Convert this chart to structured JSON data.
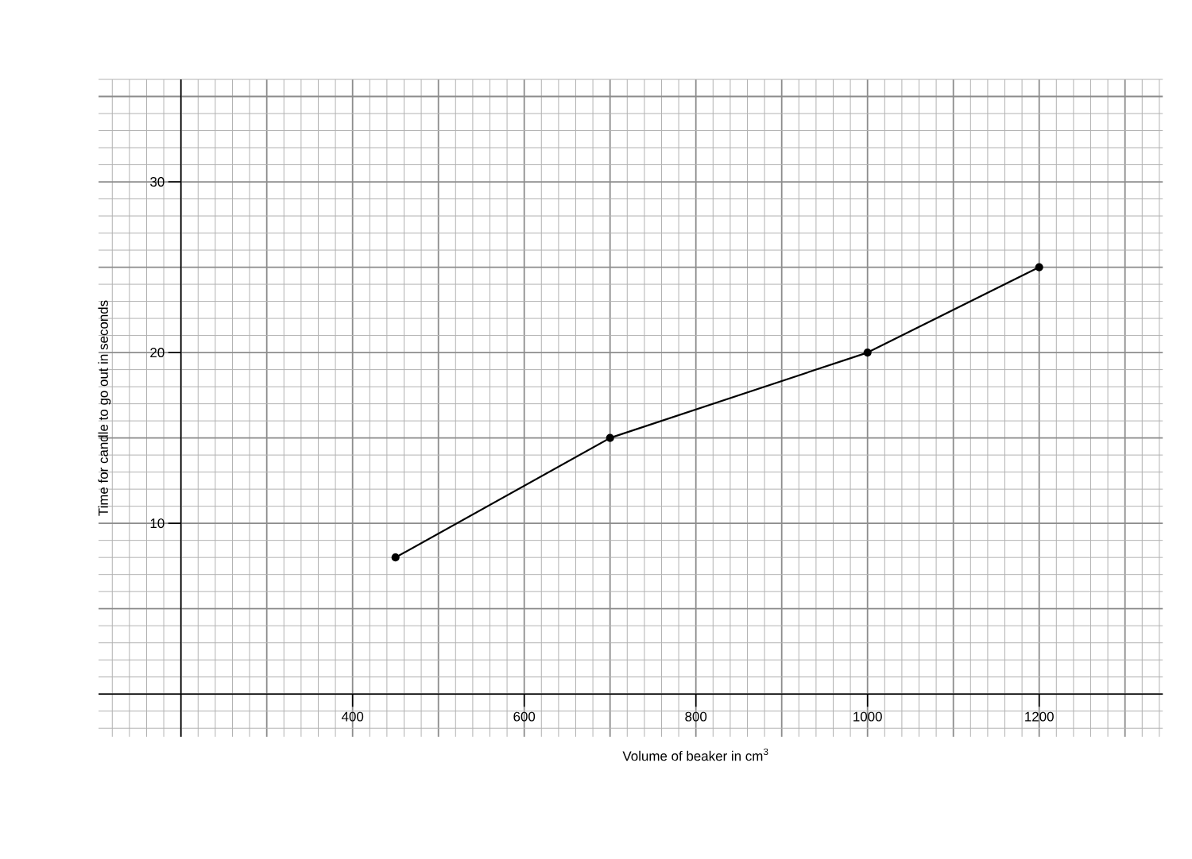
{
  "chart_data": {
    "type": "line",
    "xlabel": "Volume of beaker in cm$^{3}$",
    "ylabel": "Time for candle to go out in seconds",
    "x": [
      450,
      700,
      1000,
      1200
    ],
    "values": [
      8,
      15,
      20,
      25
    ],
    "color": "#000000",
    "marker": "circle",
    "line_style": "solid",
    "xlim": [
      104,
      1344
    ],
    "ylim": [
      -2.5,
      36
    ],
    "xticks": [
      400,
      600,
      800,
      1000,
      1200
    ],
    "yticks": [
      10,
      20,
      30
    ],
    "grid": true
  }
}
